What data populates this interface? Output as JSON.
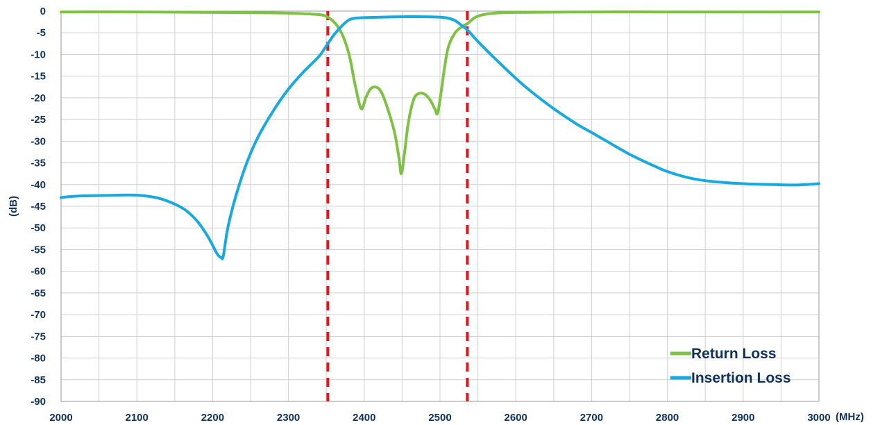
{
  "chart_data": {
    "type": "line",
    "xlabel": "(MHz)",
    "ylabel": "(dB)",
    "xlim": [
      2000,
      3000
    ],
    "ylim": [
      -90,
      0
    ],
    "x_ticks": [
      2000,
      2100,
      2200,
      2300,
      2400,
      2500,
      2600,
      2700,
      2800,
      2900,
      3000
    ],
    "y_ticks": [
      0,
      -5,
      -10,
      -15,
      -20,
      -25,
      -30,
      -35,
      -40,
      -45,
      -50,
      -55,
      -60,
      -65,
      -70,
      -75,
      -80,
      -85,
      -90
    ],
    "grid": true,
    "legend_position": "bottom-right",
    "series": [
      {
        "name": "Return Loss",
        "color": "#7dc242",
        "x": [
          2000,
          2100,
          2200,
          2280,
          2320,
          2340,
          2350,
          2360,
          2370,
          2380,
          2388,
          2396,
          2402,
          2408,
          2415,
          2422,
          2430,
          2440,
          2446,
          2449,
          2453,
          2458,
          2465,
          2472,
          2480,
          2487,
          2493,
          2497,
          2502,
          2510,
          2520,
          2530,
          2537,
          2545,
          2555,
          2570,
          2600,
          2700,
          2800,
          2900,
          3000
        ],
        "y": [
          -0.2,
          -0.2,
          -0.3,
          -0.4,
          -0.6,
          -0.8,
          -1.2,
          -2.5,
          -5,
          -10,
          -17,
          -22.5,
          -20,
          -18,
          -17.5,
          -18.5,
          -22,
          -28,
          -34,
          -37.5,
          -33,
          -26,
          -20.5,
          -19,
          -19.2,
          -20.5,
          -22.5,
          -23.5,
          -18,
          -9,
          -5,
          -3.5,
          -2.8,
          -1.6,
          -0.9,
          -0.5,
          -0.3,
          -0.2,
          -0.2,
          -0.2,
          -0.2
        ]
      },
      {
        "name": "Insertion Loss",
        "color": "#18a9e1",
        "x": [
          2000,
          2010,
          2030,
          2060,
          2090,
          2110,
          2130,
          2150,
          2165,
          2180,
          2192,
          2200,
          2206,
          2211,
          2214,
          2220,
          2230,
          2245,
          2260,
          2280,
          2300,
          2320,
          2340,
          2350,
          2360,
          2370,
          2380,
          2390,
          2400,
          2420,
          2450,
          2480,
          2500,
          2510,
          2520,
          2530,
          2537,
          2550,
          2570,
          2600,
          2620,
          2650,
          2680,
          2700,
          2720,
          2750,
          2780,
          2800,
          2830,
          2860,
          2900,
          2940,
          2970,
          3000
        ],
        "y": [
          -43,
          -42.8,
          -42.6,
          -42.5,
          -42.4,
          -42.6,
          -43.2,
          -44.5,
          -46,
          -48.5,
          -51.5,
          -54,
          -56,
          -56.8,
          -56.5,
          -50,
          -43,
          -35,
          -29,
          -23,
          -18,
          -14,
          -10.5,
          -8,
          -5.5,
          -3.5,
          -2,
          -1.6,
          -1.5,
          -1.4,
          -1.3,
          -1.3,
          -1.4,
          -1.6,
          -2.2,
          -3.5,
          -4.5,
          -7,
          -10.5,
          -15.5,
          -18.5,
          -22.5,
          -26,
          -28,
          -30,
          -33,
          -35.5,
          -37,
          -38.5,
          -39.3,
          -39.8,
          -40,
          -40.1,
          -39.8
        ]
      }
    ],
    "vlines": [
      {
        "x": 2352,
        "color": "#e8141b"
      },
      {
        "x": 2536,
        "color": "#e8141b"
      }
    ]
  }
}
